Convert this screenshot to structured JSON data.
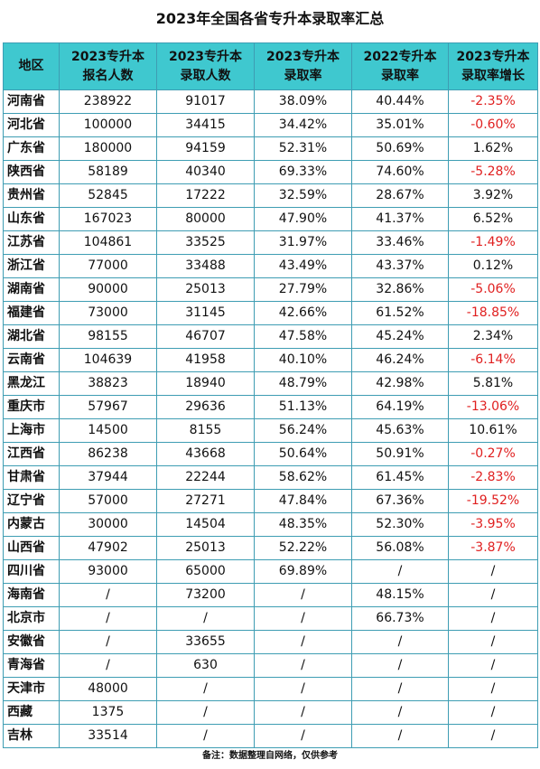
{
  "title": "2023年全国各省专升本录取率汇总",
  "headers": {
    "region": "地区",
    "applicants_l1": "2023专升本",
    "applicants_l2": "报名人数",
    "admitted_l1": "2023专升本",
    "admitted_l2": "录取人数",
    "rate2023_l1": "2023专升本",
    "rate2023_l2": "录取率",
    "rate2022_l1": "2022专升本",
    "rate2022_l2": "录取率",
    "growth_l1": "2023专升本",
    "growth_l2": "录取率增长"
  },
  "rows": [
    [
      "河南省",
      "238922",
      "91017",
      "38.09%",
      "40.44%",
      "-2.35%"
    ],
    [
      "河北省",
      "100000",
      "34415",
      "34.42%",
      "35.01%",
      "-0.60%"
    ],
    [
      "广东省",
      "180000",
      "94159",
      "52.31%",
      "50.69%",
      "1.62%"
    ],
    [
      "陕西省",
      "58189",
      "40340",
      "69.33%",
      "74.60%",
      "-5.28%"
    ],
    [
      "贵州省",
      "52845",
      "17222",
      "32.59%",
      "28.67%",
      "3.92%"
    ],
    [
      "山东省",
      "167023",
      "80000",
      "47.90%",
      "41.37%",
      "6.52%"
    ],
    [
      "江苏省",
      "104861",
      "33525",
      "31.97%",
      "33.46%",
      "-1.49%"
    ],
    [
      "浙江省",
      "77000",
      "33488",
      "43.49%",
      "43.37%",
      "0.12%"
    ],
    [
      "湖南省",
      "90000",
      "25013",
      "27.79%",
      "32.86%",
      "-5.06%"
    ],
    [
      "福建省",
      "73000",
      "31145",
      "42.66%",
      "61.52%",
      "-18.85%"
    ],
    [
      "湖北省",
      "98155",
      "46707",
      "47.58%",
      "45.24%",
      "2.34%"
    ],
    [
      "云南省",
      "104639",
      "41958",
      "40.10%",
      "46.24%",
      "-6.14%"
    ],
    [
      "黑龙江",
      "38823",
      "18940",
      "48.79%",
      "42.98%",
      "5.81%"
    ],
    [
      "重庆市",
      "57967",
      "29636",
      "51.13%",
      "64.19%",
      "-13.06%"
    ],
    [
      "上海市",
      "14500",
      "8155",
      "56.24%",
      "45.63%",
      "10.61%"
    ],
    [
      "江西省",
      "86238",
      "43668",
      "50.64%",
      "50.91%",
      "-0.27%"
    ],
    [
      "甘肃省",
      "37944",
      "22244",
      "58.62%",
      "61.45%",
      "-2.83%"
    ],
    [
      "辽宁省",
      "57000",
      "27271",
      "47.84%",
      "67.36%",
      "-19.52%"
    ],
    [
      "内蒙古",
      "30000",
      "14504",
      "48.35%",
      "52.30%",
      "-3.95%"
    ],
    [
      "山西省",
      "47902",
      "25013",
      "52.22%",
      "56.08%",
      "-3.87%"
    ],
    [
      "四川省",
      "93000",
      "65000",
      "69.89%",
      "/",
      "/"
    ],
    [
      "海南省",
      "/",
      "73200",
      "/",
      "48.15%",
      "/"
    ],
    [
      "北京市",
      "/",
      "/",
      "/",
      "66.73%",
      "/"
    ],
    [
      "安徽省",
      "/",
      "33655",
      "/",
      "/",
      "/"
    ],
    [
      "青海省",
      "/",
      "630",
      "/",
      "/",
      "/"
    ],
    [
      "天津市",
      "48000",
      "/",
      "/",
      "/",
      "/"
    ],
    [
      "西藏",
      "1375",
      "/",
      "/",
      "/",
      "/"
    ],
    [
      "吉林",
      "33514",
      "/",
      "/",
      "/",
      "/"
    ]
  ],
  "footer": "备注：数据整理自网络，仅供参考",
  "colors": {
    "header_bg": "#3fc8cf",
    "grid": "#3e9db3",
    "negative": "#e02020"
  }
}
